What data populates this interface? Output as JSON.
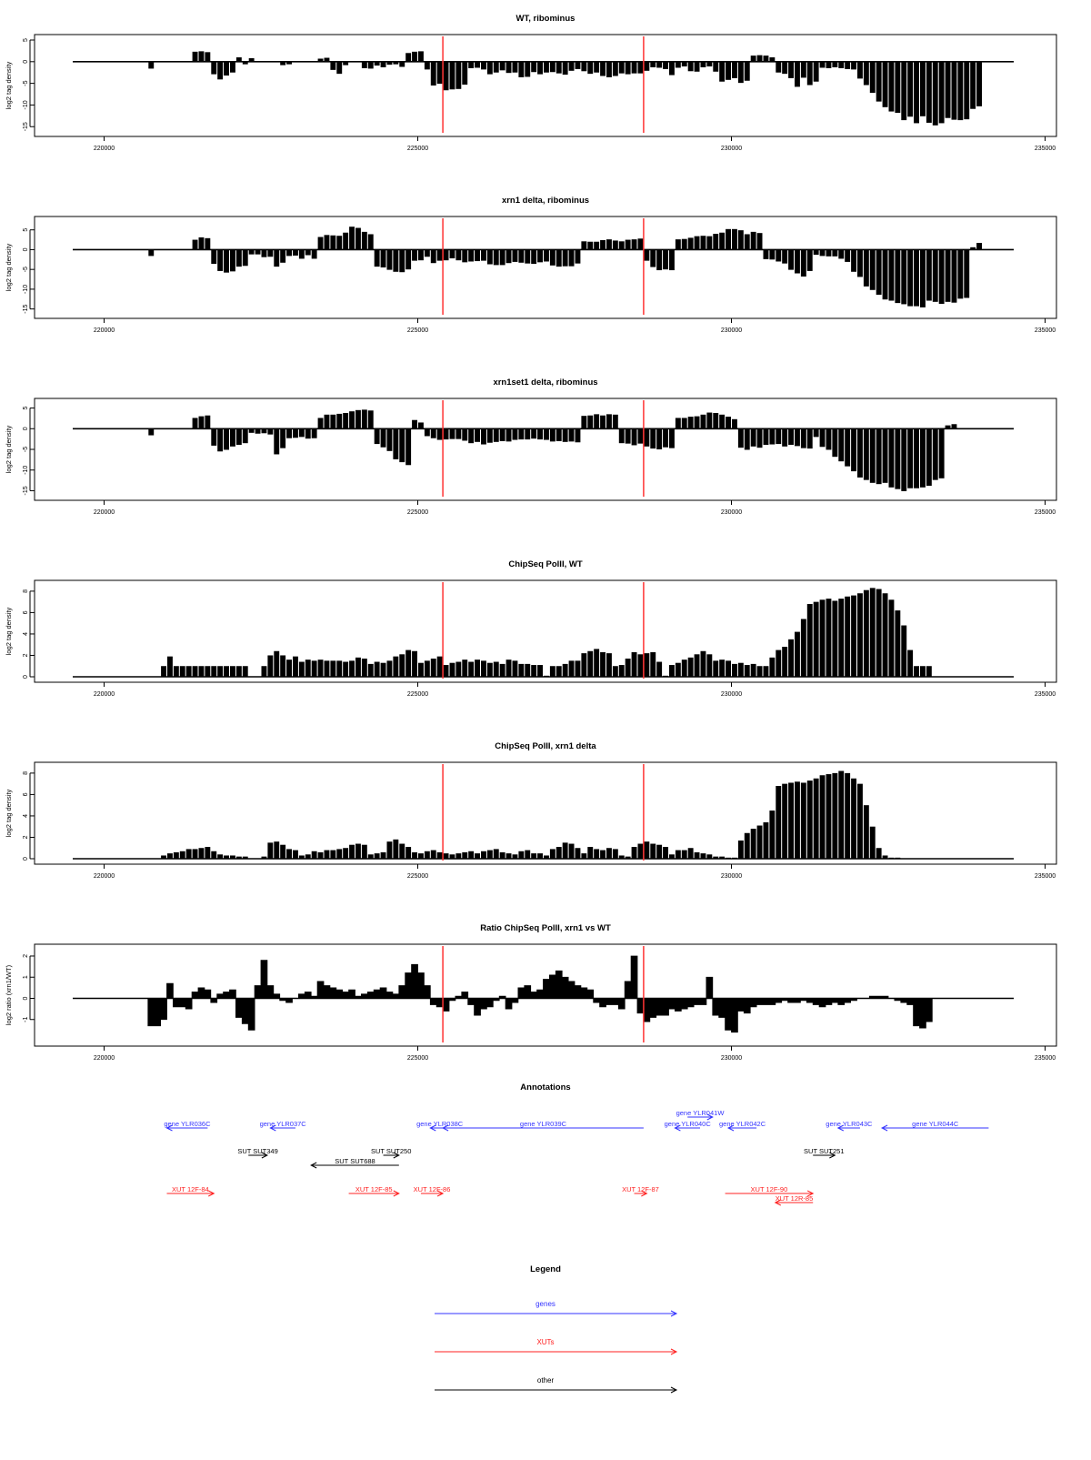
{
  "colors": {
    "data": "#000000",
    "axis": "#000000",
    "marker": "#ff3333",
    "genes": "#3333ff",
    "xuts": "#ff2020",
    "other": "#000000"
  },
  "xaxis": {
    "ticks": [
      220000,
      225000,
      230000,
      235000
    ],
    "tick_labels": [
      "220000",
      "225000",
      "230000",
      "235000"
    ],
    "xlim": [
      219500,
      234500
    ]
  },
  "markers": [
    225400,
    228600
  ],
  "chart_data": [
    {
      "id": "wt-ribominus",
      "type": "bar",
      "title": "WT, ribominus",
      "ylabel": "log2 tag density",
      "ylim": [
        -16,
        5
      ],
      "yticks": [
        5,
        0,
        -5,
        -10,
        -15
      ],
      "ytick_labels": [
        "5",
        "0",
        "-5",
        "-10",
        "-15"
      ],
      "series": {
        "x_start": 219500,
        "step": 100,
        "values": [
          0,
          0,
          0,
          0,
          0,
          0,
          0,
          0,
          0,
          0,
          0,
          0,
          -1.6,
          0,
          0,
          0,
          0,
          0,
          0,
          2.3,
          2.4,
          2.2,
          -2.9,
          -4.1,
          -3.2,
          -2.5,
          1,
          -0.6,
          0.8,
          0,
          0,
          0,
          0,
          -0.8,
          -0.6,
          0,
          0,
          0,
          0,
          0.7,
          0.9,
          -1.9,
          -2.8,
          -0.8,
          0,
          0,
          -1.5,
          -1.6,
          -0.9,
          -1.3,
          -0.7,
          -0.6,
          -1.2,
          2,
          2.3,
          2.4,
          -1.8,
          -5.5,
          -5.1,
          -6.6,
          -6.4,
          -6.3,
          -5.3,
          -1.5,
          -1.4,
          -1.8,
          -2.9,
          -2.5,
          -2,
          -2.6,
          -2.5,
          -3.6,
          -3.5,
          -2.4,
          -2.9,
          -2.5,
          -2.4,
          -2.7,
          -3,
          -2.1,
          -1.7,
          -2.2,
          -2.8,
          -2.5,
          -3.3,
          -3.6,
          -3.3,
          -2.7,
          -2.9,
          -2.7,
          -2.7,
          -2.1,
          -1.3,
          -1.4,
          -1.7,
          -3.1,
          -1.4,
          -1.1,
          -2.2,
          -2.3,
          -1.3,
          -1.1,
          -2.3,
          -4.6,
          -4.2,
          -3.8,
          -4.9,
          -4.4,
          1.4,
          1.5,
          1.4,
          1,
          -2.5,
          -2.8,
          -3.8,
          -5.8,
          -3.7,
          -5.4,
          -4.6,
          -1.4,
          -1.5,
          -1.3,
          -1.5,
          -1.7,
          -1.8,
          -3.9,
          -5.4,
          -7.2,
          -9.2,
          -10.5,
          -11.5,
          -11.8,
          -13.5,
          -12.7,
          -14.2,
          -12.6,
          -14.1,
          -14.7,
          -14.2,
          -13,
          -13.4,
          -13.5,
          -13.3,
          -10.9,
          -10.3,
          0,
          0
        ]
      }
    },
    {
      "id": "xrn1-ribominus",
      "type": "bar",
      "title": "xrn1 delta, ribominus",
      "ylabel": "log2 tag density",
      "ylim": [
        -16,
        7
      ],
      "yticks": [
        5,
        0,
        -5,
        -10,
        -15
      ],
      "ytick_labels": [
        "5",
        "0",
        "-5",
        "-10",
        "-15"
      ],
      "series": {
        "x_start": 219500,
        "step": 100,
        "values": [
          0,
          0,
          0,
          0,
          0,
          0,
          0,
          0,
          0,
          0,
          0,
          0,
          -1.6,
          0,
          0,
          0,
          0,
          0,
          0,
          2.5,
          3.1,
          2.9,
          -3.6,
          -5.4,
          -5.8,
          -5.5,
          -4.3,
          -4.1,
          -1.2,
          -1.2,
          -1.9,
          -1.8,
          -4.3,
          -3.3,
          -1.6,
          -1.5,
          -2.3,
          -1.4,
          -2.3,
          3.2,
          3.7,
          3.6,
          3.5,
          4.3,
          5.8,
          5.5,
          4.5,
          3.9,
          -4.3,
          -4.5,
          -5.1,
          -5.6,
          -5.7,
          -5,
          -2.8,
          -2.7,
          -1.8,
          -3.4,
          -2.8,
          -2.7,
          -2.2,
          -2.7,
          -3.2,
          -3,
          -2.9,
          -2.8,
          -3.7,
          -3.9,
          -3.9,
          -3.4,
          -3.1,
          -3.3,
          -3.5,
          -3.6,
          -3.2,
          -3,
          -4,
          -4.3,
          -4.2,
          -4.2,
          -3.5,
          2.1,
          2,
          2,
          2.4,
          2.6,
          2.3,
          2.1,
          2.5,
          2.6,
          2.8,
          -2.8,
          -4.4,
          -5.2,
          -5,
          -5.2,
          2.6,
          2.7,
          3,
          3.4,
          3.5,
          3.4,
          4,
          4.3,
          5.2,
          5.2,
          4.9,
          3.9,
          4.5,
          4.2,
          -2.4,
          -2.5,
          -3,
          -3.5,
          -5.1,
          -6,
          -6.8,
          -5.4,
          -1.3,
          -1.6,
          -1.7,
          -1.7,
          -2.3,
          -3.1,
          -5.6,
          -6.9,
          -9.3,
          -10.2,
          -11.4,
          -12.6,
          -12.9,
          -13.5,
          -13.8,
          -14.3,
          -14.3,
          -14.6,
          -12.9,
          -13.2,
          -13.7,
          -13.2,
          -13.4,
          -12.4,
          -12.2,
          0.6,
          1.7
        ]
      }
    },
    {
      "id": "xrn1set1-ribominus",
      "type": "bar",
      "title": "xrn1set1 delta, ribominus",
      "ylabel": "log2 tag density",
      "ylim": [
        -16,
        6
      ],
      "yticks": [
        5,
        0,
        -5,
        -10,
        -15
      ],
      "ytick_labels": [
        "5",
        "0",
        "-5",
        "-10",
        "-15"
      ],
      "series": {
        "x_start": 219500,
        "step": 100,
        "values": [
          0,
          0,
          0,
          0,
          0,
          0,
          0,
          0,
          0,
          0,
          0,
          0,
          -1.6,
          0,
          0,
          0,
          0,
          0,
          0,
          2.6,
          3,
          3.2,
          -4.1,
          -5.5,
          -5.1,
          -4.3,
          -3.9,
          -3.5,
          -1,
          -1.2,
          -1.1,
          -1.4,
          -6.2,
          -4.7,
          -2.3,
          -2.2,
          -2,
          -2.4,
          -2.3,
          2.6,
          3.4,
          3.4,
          3.6,
          3.8,
          4.2,
          4.5,
          4.6,
          4.4,
          -3.7,
          -4.5,
          -5.4,
          -7.4,
          -8.1,
          -8.8,
          2.1,
          1.5,
          -1.8,
          -2.3,
          -2.7,
          -2.6,
          -2.5,
          -2.5,
          -2.9,
          -3.5,
          -3.2,
          -3.8,
          -3.4,
          -3.2,
          -3,
          -3.1,
          -2.7,
          -2.6,
          -2.6,
          -2.4,
          -2.6,
          -2.7,
          -3.1,
          -3,
          -3.2,
          -3.1,
          -3.3,
          3.1,
          3.2,
          3.5,
          3.2,
          3.5,
          3.4,
          -3.5,
          -3.6,
          -4,
          -3.6,
          -4.3,
          -4.8,
          -5,
          -4.5,
          -4.7,
          2.6,
          2.6,
          2.9,
          3,
          3.4,
          3.9,
          3.8,
          3.4,
          2.9,
          2.3,
          -4.6,
          -5.1,
          -4.3,
          -4.6,
          -3.9,
          -3.8,
          -3.7,
          -4.3,
          -3.9,
          -4.2,
          -4.7,
          -4.8,
          -2,
          -4.4,
          -5.1,
          -6.8,
          -7.9,
          -9.1,
          -10.3,
          -11.8,
          -12.4,
          -13.1,
          -13.4,
          -13.1,
          -14.2,
          -14.6,
          -15.1,
          -14.4,
          -14.4,
          -14.2,
          -13.8,
          -12.4,
          -12,
          0.8,
          1.1
        ]
      }
    },
    {
      "id": "chipseq-wt",
      "type": "bar",
      "title": "ChipSeq PolII, WT",
      "ylabel": "log2 tag density",
      "ylim": [
        0,
        8.5
      ],
      "yticks": [
        0,
        2,
        4,
        6,
        8
      ],
      "ytick_labels": [
        "0",
        "2",
        "4",
        "6",
        "8"
      ],
      "series": {
        "x_start": 219500,
        "step": 100,
        "values": [
          0,
          0,
          0,
          0,
          0,
          0,
          0,
          0,
          0,
          0,
          0,
          0,
          0,
          0,
          1,
          1.9,
          1,
          1,
          1,
          1,
          1,
          1,
          1,
          1,
          1,
          1,
          1,
          1,
          0,
          0,
          1,
          2,
          2.4,
          2,
          1.6,
          1.9,
          1.4,
          1.6,
          1.5,
          1.6,
          1.5,
          1.5,
          1.5,
          1.4,
          1.5,
          1.8,
          1.7,
          1.2,
          1.4,
          1.3,
          1.5,
          1.9,
          2.1,
          2.5,
          2.4,
          1.3,
          1.5,
          1.7,
          1.9,
          1.1,
          1.3,
          1.4,
          1.6,
          1.4,
          1.6,
          1.5,
          1.3,
          1.4,
          1.2,
          1.6,
          1.5,
          1.2,
          1.2,
          1.1,
          1.1,
          0.1,
          1,
          1,
          1.2,
          1.5,
          1.5,
          2.2,
          2.4,
          2.6,
          2.3,
          2.2,
          1,
          1.1,
          1.7,
          2.3,
          2.1,
          2.2,
          2.3,
          1.4,
          0.1,
          1.1,
          1.3,
          1.6,
          1.8,
          2.1,
          2.4,
          2.1,
          1.5,
          1.6,
          1.5,
          1.2,
          1.3,
          1.1,
          1.2,
          1,
          1,
          1.8,
          2.5,
          2.8,
          3.5,
          4.2,
          5.4,
          6.8,
          7,
          7.2,
          7.3,
          7.1,
          7.3,
          7.5,
          7.6,
          7.8,
          8.1,
          8.3,
          8.2,
          7.8,
          7.2,
          6.2,
          4.8,
          2.5,
          1,
          1,
          1
        ]
      }
    },
    {
      "id": "chipseq-xrn1",
      "type": "bar",
      "title": "ChipSeq PolII, xrn1 delta",
      "ylabel": "log2 tag density",
      "ylim": [
        0,
        8.5
      ],
      "yticks": [
        0,
        2,
        4,
        6,
        8
      ],
      "ytick_labels": [
        "0",
        "2",
        "4",
        "6",
        "8"
      ],
      "series": {
        "x_start": 219500,
        "step": 100,
        "values": [
          0,
          0,
          0,
          0,
          0,
          0,
          0,
          0,
          0,
          0,
          0,
          0,
          0,
          0,
          0.3,
          0.5,
          0.6,
          0.7,
          0.9,
          0.9,
          1,
          1.1,
          0.7,
          0.4,
          0.3,
          0.3,
          0.2,
          0.2,
          0,
          0,
          0.2,
          1.5,
          1.6,
          1.3,
          0.9,
          0.8,
          0.3,
          0.4,
          0.7,
          0.6,
          0.8,
          0.8,
          0.9,
          1,
          1.3,
          1.4,
          1.3,
          0.4,
          0.5,
          0.6,
          1.6,
          1.8,
          1.4,
          1.1,
          0.6,
          0.5,
          0.7,
          0.8,
          0.6,
          0.5,
          0.4,
          0.5,
          0.6,
          0.7,
          0.5,
          0.7,
          0.8,
          0.9,
          0.6,
          0.5,
          0.4,
          0.7,
          0.8,
          0.5,
          0.5,
          0.3,
          0.9,
          1.1,
          1.5,
          1.4,
          1,
          0.5,
          1.1,
          0.9,
          0.8,
          1,
          0.9,
          0.3,
          0.2,
          1.1,
          1.4,
          1.6,
          1.4,
          1.3,
          1.1,
          0.4,
          0.8,
          0.8,
          1,
          0.6,
          0.5,
          0.4,
          0.2,
          0.2,
          0.1,
          0.1,
          1.7,
          2.4,
          2.8,
          3.1,
          3.4,
          4.5,
          6.8,
          7,
          7.1,
          7.2,
          7.1,
          7.3,
          7.5,
          7.8,
          7.9,
          8,
          8.2,
          8,
          7.5,
          7,
          5,
          3,
          1,
          0.3,
          0.1,
          0.1
        ]
      }
    },
    {
      "id": "ratio-xrn1-wt",
      "type": "area",
      "title": "Ratio ChipSeq PolII, xrn1 vs WT",
      "ylabel": "log2 ratio (xrn1/WT)",
      "ylim": [
        -2,
        2.3
      ],
      "yticks": [
        2,
        1,
        0,
        -1
      ],
      "ytick_labels": [
        "2",
        "1",
        "0",
        "-1"
      ],
      "series": {
        "x_start": 219500,
        "step": 100,
        "values": [
          0,
          0,
          0,
          0,
          0,
          0,
          0,
          0,
          0,
          0,
          0,
          0,
          -1.3,
          -1.3,
          -1,
          0.7,
          -0.4,
          -0.4,
          -0.5,
          0.3,
          0.5,
          0.4,
          -0.2,
          0.2,
          0.3,
          0.4,
          -0.9,
          -1.2,
          -1.5,
          0.6,
          1.8,
          0.6,
          0.2,
          -0.1,
          -0.2,
          0,
          0.2,
          0.3,
          0.1,
          0.8,
          0.6,
          0.5,
          0.4,
          0.3,
          0.4,
          0.1,
          0.2,
          0.3,
          0.4,
          0.5,
          0.3,
          0.2,
          0.6,
          1.2,
          1.6,
          1.2,
          0.6,
          -0.3,
          -0.4,
          -0.6,
          -0.1,
          0.1,
          0.3,
          -0.3,
          -0.8,
          -0.5,
          -0.4,
          -0.1,
          0.1,
          -0.5,
          -0.2,
          0.5,
          0.6,
          0.3,
          0.4,
          0.9,
          1.1,
          1.3,
          1,
          0.8,
          0.6,
          0.5,
          0.4,
          -0.2,
          -0.4,
          -0.3,
          -0.3,
          -0.5,
          0.8,
          2,
          -0.7,
          -1.1,
          -0.9,
          -0.8,
          -0.8,
          -0.5,
          -0.6,
          -0.5,
          -0.4,
          -0.3,
          -0.3,
          1,
          -0.8,
          -0.9,
          -1.5,
          -1.6,
          -0.6,
          -0.7,
          -0.4,
          -0.3,
          -0.3,
          -0.3,
          -0.2,
          -0.1,
          -0.2,
          -0.2,
          -0.1,
          -0.2,
          -0.3,
          -0.4,
          -0.3,
          -0.2,
          -0.3,
          -0.2,
          -0.1,
          0,
          0,
          0.1,
          0.1,
          0.1,
          0,
          -0.1,
          -0.2,
          -0.3,
          -1.3,
          -1.4,
          -1.1
        ]
      }
    }
  ],
  "annotations": {
    "title": "Annotations",
    "genes": [
      {
        "label": "gene YLR036C",
        "start": 221000,
        "end": 221650,
        "row": 1,
        "dir": "left"
      },
      {
        "label": "gene YLR037C",
        "start": 222650,
        "end": 223050,
        "row": 1,
        "dir": "left"
      },
      {
        "label": "gene YLR038C",
        "start": 225500,
        "end": 225200,
        "row": 1,
        "dir": "left"
      },
      {
        "label": "gene YLR039C",
        "start": 228600,
        "end": 225400,
        "row": 1,
        "dir": "left"
      },
      {
        "label": "gene YLR040C",
        "start": 229500,
        "end": 229100,
        "row": 1,
        "dir": "left"
      },
      {
        "label": "gene YLR042C",
        "start": 230400,
        "end": 229950,
        "row": 1,
        "dir": "left"
      },
      {
        "label": "gene YLR043C",
        "start": 231700,
        "end": 232050,
        "row": 1,
        "dir": "left"
      },
      {
        "label": "gene YLR044C",
        "start": 234100,
        "end": 232400,
        "row": 1,
        "dir": "left"
      },
      {
        "label": "gene YLR041W",
        "start": 229300,
        "end": 229700,
        "row": 0,
        "dir": "right"
      }
    ],
    "others": [
      {
        "label": "SUT SUT349",
        "start": 222300,
        "end": 222600,
        "row": 2,
        "dir": "right"
      },
      {
        "label": "SUT SUT250",
        "start": 224450,
        "end": 224700,
        "row": 2,
        "dir": "right"
      },
      {
        "label": "SUT SUT688",
        "start": 224700,
        "end": 223300,
        "row": 3,
        "dir": "left"
      },
      {
        "label": "SUT SUT251",
        "start": 231300,
        "end": 231650,
        "row": 2,
        "dir": "right"
      }
    ],
    "xuts": [
      {
        "label": "XUT 12F-84",
        "start": 221000,
        "end": 221750,
        "row": 4,
        "dir": "right"
      },
      {
        "label": "XUT 12F-85",
        "start": 223900,
        "end": 224700,
        "row": 4,
        "dir": "right"
      },
      {
        "label": "XUT 12F-86",
        "start": 225050,
        "end": 225400,
        "row": 4,
        "dir": "right"
      },
      {
        "label": "XUT 12F-87",
        "start": 228450,
        "end": 228650,
        "row": 4,
        "dir": "right"
      },
      {
        "label": "XUT 12F-90",
        "start": 229900,
        "end": 231300,
        "row": 4,
        "dir": "right"
      },
      {
        "label": "XUT 12R-85",
        "start": 231300,
        "end": 230700,
        "row": 5,
        "dir": "left"
      }
    ]
  },
  "legend": {
    "title": "Legend",
    "items": [
      {
        "label": "genes",
        "color": "#3333ff"
      },
      {
        "label": "XUTs",
        "color": "#ff2020"
      },
      {
        "label": "other",
        "color": "#000000"
      }
    ]
  }
}
